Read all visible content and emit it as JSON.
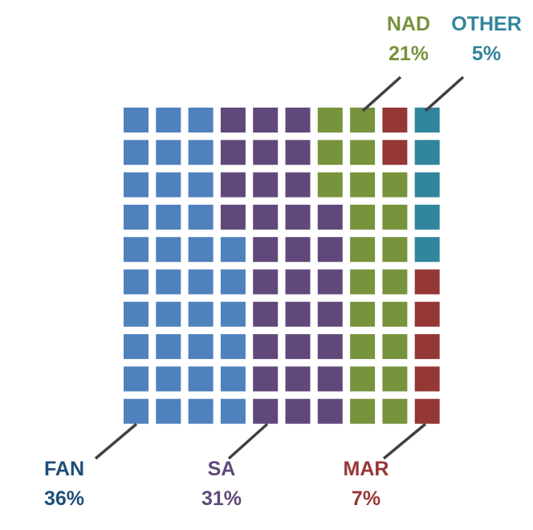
{
  "chart_data": {
    "type": "waffle",
    "grid": {
      "rows": 10,
      "columns": 10,
      "fill_order": "column-major, bottom-up"
    },
    "categories": [
      {
        "key": "fan",
        "label": "FAN",
        "percent_label": "36%",
        "value": 36,
        "color": "#4F81BD"
      },
      {
        "key": "sa",
        "label": "SA",
        "percent_label": "31%",
        "value": 31,
        "color": "#60497A"
      },
      {
        "key": "nad",
        "label": "NAD",
        "percent_label": "21%",
        "value": 21,
        "color": "#77933C"
      },
      {
        "key": "mar",
        "label": "MAR",
        "percent_label": "7%",
        "value": 7,
        "color": "#953735"
      },
      {
        "key": "other",
        "label": "OTHER",
        "percent_label": "5%",
        "value": 5,
        "color": "#31859C"
      }
    ],
    "label_colors": {
      "fan": "#1F4E79",
      "sa": "#60497A",
      "nad": "#77933C",
      "mar": "#953735",
      "other": "#31859C"
    },
    "leader_line_color": "#404040"
  }
}
